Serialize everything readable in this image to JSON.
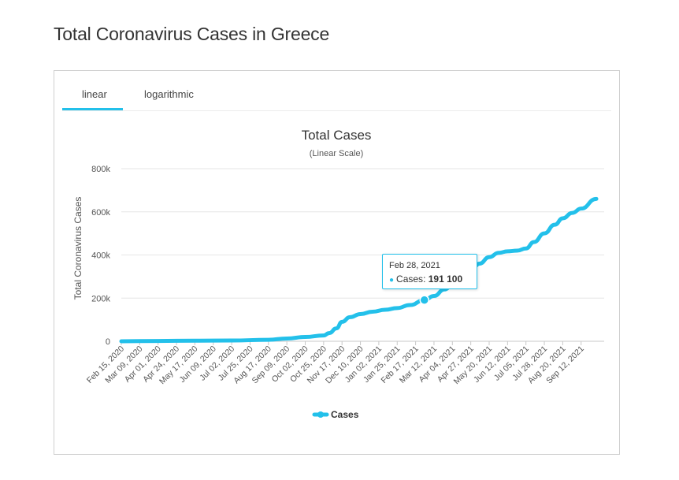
{
  "page": {
    "title": "Total Coronavirus Cases in Greece"
  },
  "tabs": [
    {
      "label": "linear",
      "active": true
    },
    {
      "label": "logarithmic",
      "active": false
    }
  ],
  "colors": {
    "accent": "#23c0ea",
    "grid": "#e6e6e6",
    "text": "#333333"
  },
  "tooltip": {
    "date": "Feb 28, 2021",
    "series": "Cases",
    "value": "191 100"
  },
  "chart_data": {
    "type": "line",
    "title": "Total Cases",
    "subtitle": "(Linear Scale)",
    "ylabel": "Total Coronavirus Cases",
    "xlabel": "",
    "ylim": [
      0,
      800000
    ],
    "yticks": [
      0,
      200000,
      400000,
      600000,
      800000
    ],
    "ytick_labels": [
      "0",
      "200k",
      "400k",
      "600k",
      "800k"
    ],
    "x_tick_labels": [
      "Feb 15, 2020",
      "Mar 09, 2020",
      "Apr 01, 2020",
      "Apr 24, 2020",
      "May 17, 2020",
      "Jun 09, 2020",
      "Jul 02, 2020",
      "Jul 25, 2020",
      "Aug 17, 2020",
      "Sep 09, 2020",
      "Oct 02, 2020",
      "Oct 25, 2020",
      "Nov 17, 2020",
      "Dec 10, 2020",
      "Jan 02, 2021",
      "Jan 25, 2021",
      "Feb 17, 2021",
      "Mar 12, 2021",
      "Apr 04, 2021",
      "Apr 27, 2021",
      "May 20, 2021",
      "Jun 12, 2021",
      "Jul 05, 2021",
      "Jul 28, 2021",
      "Aug 20, 2021",
      "Sep 12, 2021"
    ],
    "x_range": [
      "Feb 15, 2020",
      "Oct 01, 2021"
    ],
    "grid": true,
    "legend": "bottom-center",
    "highlight": {
      "x": "Feb 28, 2021",
      "y": 191100
    },
    "series": [
      {
        "name": "Cases",
        "x": [
          "Feb 15, 2020",
          "Apr 01, 2020",
          "May 17, 2020",
          "Jul 02, 2020",
          "Aug 17, 2020",
          "Sep 09, 2020",
          "Oct 02, 2020",
          "Oct 25, 2020",
          "Nov 01, 2020",
          "Nov 10, 2020",
          "Nov 17, 2020",
          "Nov 27, 2020",
          "Dec 10, 2020",
          "Dec 25, 2020",
          "Jan 10, 2021",
          "Jan 25, 2021",
          "Feb 10, 2021",
          "Feb 28, 2021",
          "Mar 12, 2021",
          "Mar 25, 2021",
          "Apr 04, 2021",
          "Apr 15, 2021",
          "Apr 27, 2021",
          "May 08, 2021",
          "May 20, 2021",
          "Jun 01, 2021",
          "Jun 12, 2021",
          "Jun 24, 2021",
          "Jul 05, 2021",
          "Jul 15, 2021",
          "Jul 28, 2021",
          "Aug 10, 2021",
          "Aug 20, 2021",
          "Sep 01, 2021",
          "Sep 12, 2021",
          "Oct 01, 2021"
        ],
        "y": [
          0,
          1500,
          2800,
          3500,
          7000,
          13000,
          20000,
          27000,
          38000,
          60000,
          90000,
          112000,
          126000,
          137000,
          146000,
          154000,
          168000,
          191100,
          210000,
          240000,
          260000,
          300000,
          330000,
          360000,
          390000,
          410000,
          417000,
          420000,
          430000,
          460000,
          500000,
          540000,
          570000,
          595000,
          615000,
          660000
        ]
      }
    ]
  }
}
